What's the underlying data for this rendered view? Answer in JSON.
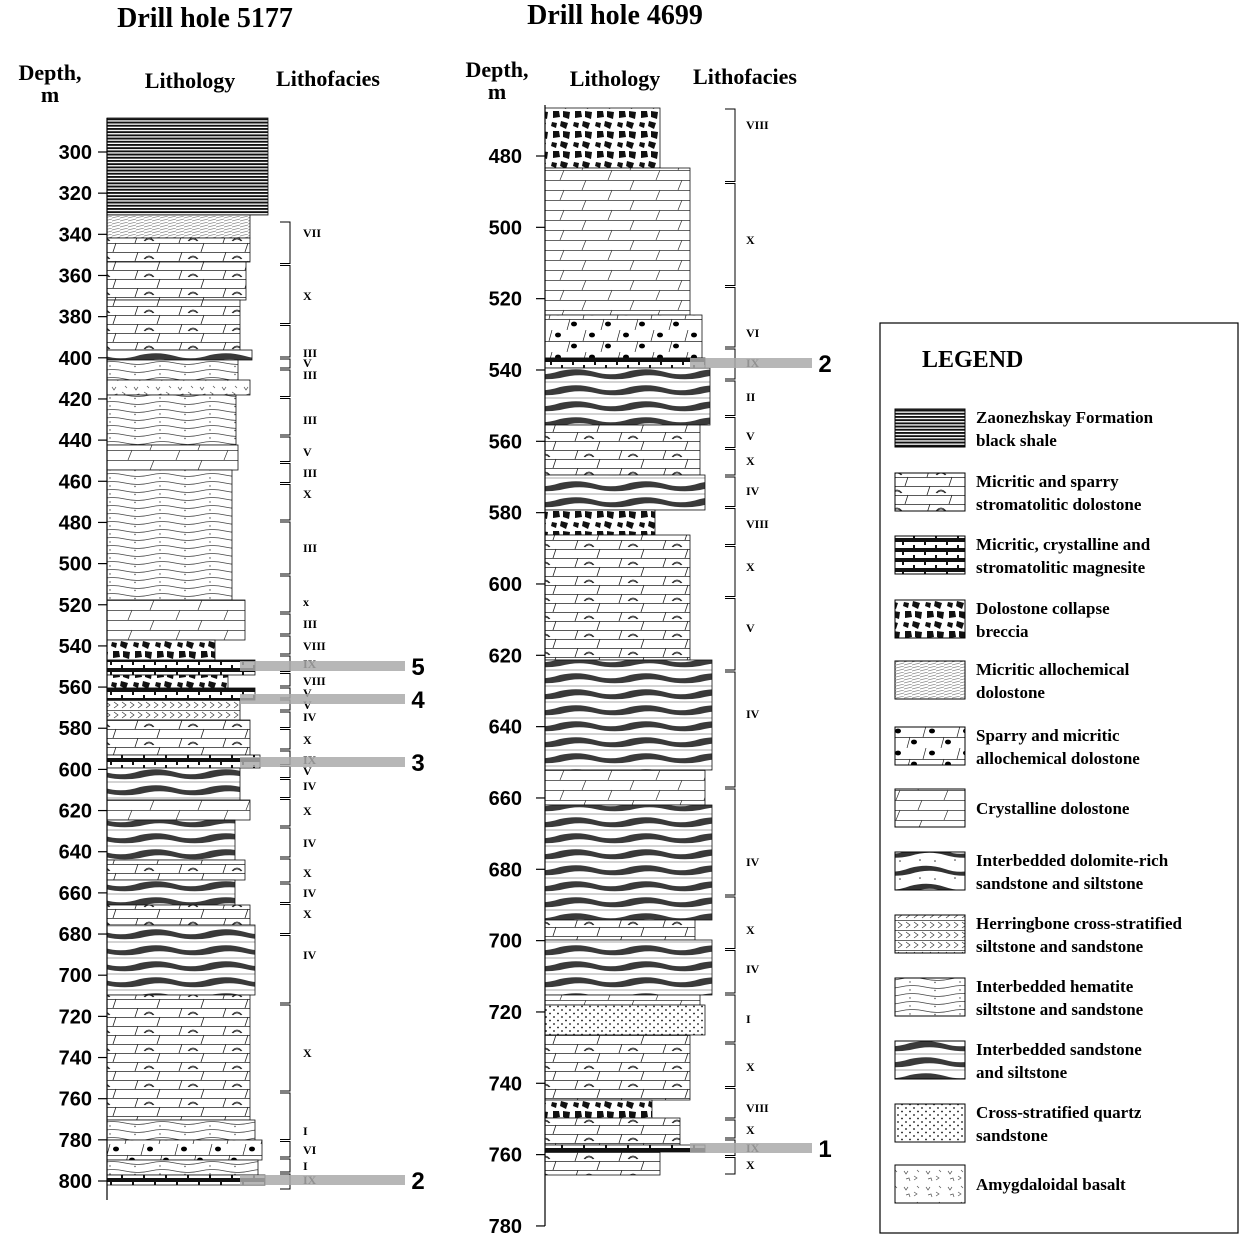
{
  "holes": [
    {
      "title": "Drill hole 5177",
      "depth_header": "Depth,",
      "depth_unit": "m",
      "lithology_header": "Lithology",
      "lithofacies_header": "Lithofacies",
      "depth_ticks": [
        300,
        320,
        340,
        360,
        380,
        400,
        420,
        440,
        460,
        480,
        500,
        520,
        540,
        560,
        580,
        600,
        620,
        640,
        660,
        680,
        700,
        720,
        740,
        760,
        780,
        800
      ],
      "lithofacies": [
        "VII",
        "X",
        "III",
        "V",
        "III",
        "III",
        "V",
        "III",
        "X",
        "III",
        "x",
        "III",
        "VIII",
        "IX",
        "VIII",
        "V",
        "V",
        "IV",
        "X",
        "IX",
        "V",
        "IV",
        "X",
        "IV",
        "X",
        "IV",
        "X",
        "IV",
        "X",
        "I",
        "VI",
        "I",
        "IX"
      ],
      "samples": [
        "5",
        "4",
        "3",
        "2"
      ]
    },
    {
      "title": "Drill hole 4699",
      "depth_header": "Depth,",
      "depth_unit": "m",
      "lithology_header": "Lithology",
      "lithofacies_header": "Lithofacies",
      "depth_ticks": [
        480,
        500,
        520,
        540,
        560,
        580,
        600,
        620,
        640,
        660,
        680,
        700,
        720,
        740,
        760,
        780
      ],
      "lithofacies": [
        "VIII",
        "X",
        "VI",
        "IX",
        "II",
        "V",
        "X",
        "IV",
        "VIII",
        "X",
        "V",
        "IV",
        "IV",
        "X",
        "IV",
        "I",
        "X",
        "VIII",
        "X",
        "IX",
        "X"
      ],
      "samples": [
        "2",
        "1"
      ]
    }
  ],
  "legend": {
    "title": "LEGEND",
    "items": [
      [
        "Zaonezhskay Formation",
        "black shale"
      ],
      [
        "Micritic and sparry",
        "stromatolitic dolostone"
      ],
      [
        "Micritic, crystalline and",
        "stromatolitic magnesite"
      ],
      [
        "Dolostone collapse",
        "breccia"
      ],
      [
        "Micritic allochemical",
        "dolostone"
      ],
      [
        "Sparry and micritic",
        "allochemical dolostone"
      ],
      [
        "Crystalline dolostone"
      ],
      [
        "Interbedded dolomite-rich",
        "sandstone and siltstone"
      ],
      [
        "Herringbone cross-stratified",
        "siltstone and sandstone"
      ],
      [
        "Interbedded hematite",
        "siltstone and sandstone"
      ],
      [
        "Interbedded sandstone",
        "and siltstone"
      ],
      [
        "Cross-stratified quartz",
        "sandstone"
      ],
      [
        "Amygdaloidal basalt"
      ]
    ]
  }
}
